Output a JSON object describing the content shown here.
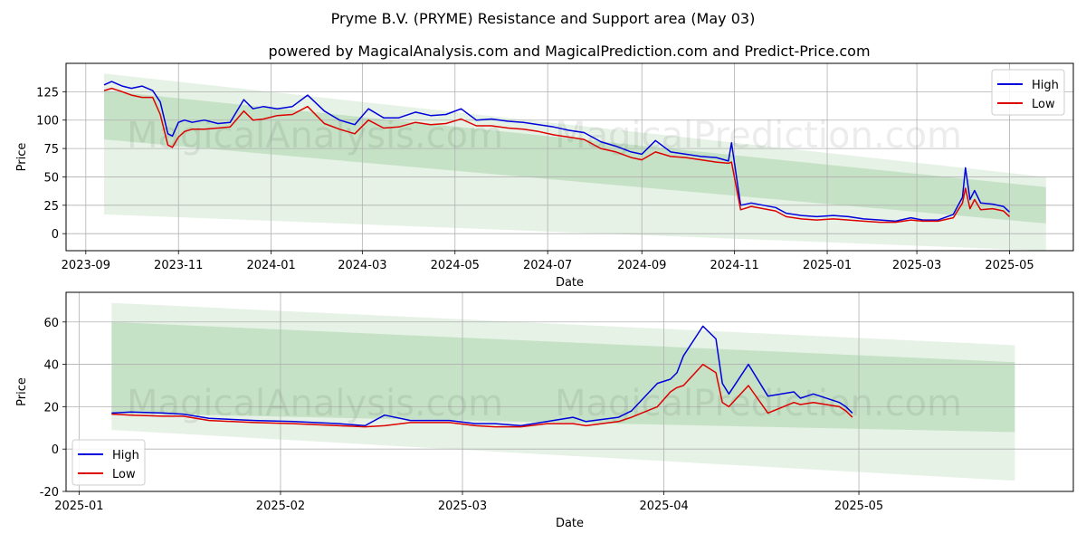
{
  "page": {
    "title": "Pryme B.V. (PRYME) Resistance and Support area (May 03)",
    "subtitle": "powered by MagicalAnalysis.com and MagicalPrediction.com and Predict-Price.com",
    "watermark_1": "MagicalAnalysis.com",
    "watermark_2": "MagicalPrediction.com"
  },
  "colors": {
    "high": "#0000dd",
    "low": "#dd0000",
    "band": "#3a9a3a",
    "grid": "#b0b0b0"
  },
  "chart_data": [
    {
      "type": "line",
      "xlabel": "Date",
      "ylabel": "Price",
      "xlim": [
        "2023-08-19",
        "2025-06-12"
      ],
      "ylim": [
        -15,
        150
      ],
      "grid": true,
      "legend_position": "top-right",
      "xticks": [
        "2023-09",
        "2023-11",
        "2024-01",
        "2024-03",
        "2024-05",
        "2024-07",
        "2024-09",
        "2024-11",
        "2025-01",
        "2025-03",
        "2025-05"
      ],
      "yticks": [
        0,
        25,
        50,
        75,
        100,
        125
      ],
      "x": [
        "2023-09-13",
        "2023-09-18",
        "2023-09-25",
        "2023-10-01",
        "2023-10-08",
        "2023-10-15",
        "2023-10-20",
        "2023-10-25",
        "2023-10-28",
        "2023-11-01",
        "2023-11-05",
        "2023-11-10",
        "2023-11-18",
        "2023-11-27",
        "2023-12-05",
        "2023-12-14",
        "2023-12-20",
        "2023-12-27",
        "2024-01-05",
        "2024-01-15",
        "2024-01-25",
        "2024-02-05",
        "2024-02-15",
        "2024-02-25",
        "2024-03-05",
        "2024-03-15",
        "2024-03-25",
        "2024-04-05",
        "2024-04-15",
        "2024-04-25",
        "2024-05-05",
        "2024-05-15",
        "2024-05-25",
        "2024-06-05",
        "2024-06-15",
        "2024-06-25",
        "2024-07-05",
        "2024-07-15",
        "2024-07-25",
        "2024-08-05",
        "2024-08-15",
        "2024-08-25",
        "2024-09-01",
        "2024-09-10",
        "2024-09-20",
        "2024-09-30",
        "2024-10-10",
        "2024-10-20",
        "2024-10-28",
        "2024-10-30",
        "2024-11-05",
        "2024-11-12",
        "2024-11-20",
        "2024-11-28",
        "2024-12-05",
        "2024-12-15",
        "2024-12-25",
        "2025-01-05",
        "2025-01-15",
        "2025-01-25",
        "2025-02-05",
        "2025-02-15",
        "2025-02-25",
        "2025-03-05",
        "2025-03-15",
        "2025-03-25",
        "2025-03-31",
        "2025-04-02",
        "2025-04-05",
        "2025-04-08",
        "2025-04-12",
        "2025-04-20",
        "2025-04-27",
        "2025-05-01"
      ],
      "series": [
        {
          "name": "High",
          "color": "#0000dd",
          "values": [
            131,
            134,
            130,
            128,
            130,
            126,
            116,
            88,
            86,
            98,
            100,
            98,
            100,
            97,
            98,
            118,
            110,
            112,
            110,
            112,
            122,
            108,
            100,
            96,
            110,
            102,
            102,
            107,
            104,
            105,
            110,
            100,
            101,
            99,
            98,
            96,
            94,
            91,
            89,
            81,
            77,
            72,
            70,
            82,
            72,
            70,
            68,
            67,
            64,
            80,
            25,
            27,
            25,
            23,
            18,
            16,
            15,
            16,
            15,
            13,
            12,
            11,
            14,
            12,
            12,
            17,
            32,
            58,
            30,
            38,
            27,
            26,
            24,
            19
          ]
        },
        {
          "name": "Low",
          "color": "#dd0000",
          "values": [
            126,
            128,
            125,
            122,
            120,
            120,
            105,
            78,
            76,
            85,
            90,
            92,
            92,
            93,
            94,
            108,
            100,
            101,
            104,
            105,
            112,
            97,
            92,
            88,
            100,
            93,
            94,
            98,
            96,
            97,
            101,
            95,
            95,
            93,
            92,
            90,
            87,
            85,
            83,
            75,
            72,
            67,
            65,
            72,
            68,
            67,
            65,
            63,
            62,
            63,
            21,
            24,
            22,
            20,
            15,
            13,
            12,
            13,
            12,
            11,
            10,
            10,
            12,
            11,
            11,
            14,
            27,
            40,
            22,
            30,
            21,
            22,
            20,
            15
          ]
        }
      ],
      "bands": [
        {
          "name": "outer",
          "start": "2023-09-13",
          "end": "2025-05-25",
          "upper": [
            141,
            50
          ],
          "lower": [
            17,
            -15
          ]
        },
        {
          "name": "inner",
          "start": "2023-09-13",
          "end": "2025-05-25",
          "upper": [
            126,
            41
          ],
          "lower": [
            83,
            9
          ]
        },
        {
          "name": "light_lower",
          "start": "2023-09-13",
          "end": "2025-05-25",
          "upper": [
            83,
            9
          ],
          "lower": [
            17,
            -15
          ]
        }
      ]
    },
    {
      "type": "line",
      "xlabel": "Date",
      "ylabel": "Price",
      "xlim": [
        "2024-12-30",
        "2025-06-03"
      ],
      "ylim": [
        -20,
        74
      ],
      "grid": true,
      "legend_position": "bottom-left",
      "xticks": [
        "2025-01",
        "2025-02",
        "2025-03",
        "2025-04",
        "2025-05"
      ],
      "yticks": [
        -20,
        0,
        20,
        40,
        60
      ],
      "x": [
        "2025-01-06",
        "2025-01-09",
        "2025-01-14",
        "2025-01-17",
        "2025-01-21",
        "2025-01-28",
        "2025-02-03",
        "2025-02-10",
        "2025-02-14",
        "2025-02-17",
        "2025-02-21",
        "2025-02-27",
        "2025-03-03",
        "2025-03-06",
        "2025-03-10",
        "2025-03-14",
        "2025-03-18",
        "2025-03-20",
        "2025-03-25",
        "2025-03-27",
        "2025-03-31",
        "2025-04-02",
        "2025-04-03",
        "2025-04-04",
        "2025-04-07",
        "2025-04-09",
        "2025-04-10",
        "2025-04-11",
        "2025-04-14",
        "2025-04-17",
        "2025-04-21",
        "2025-04-22",
        "2025-04-24",
        "2025-04-28",
        "2025-04-29",
        "2025-04-30"
      ],
      "series": [
        {
          "name": "High",
          "color": "#0000dd",
          "values": [
            17,
            17.5,
            17,
            16.5,
            14.5,
            13.5,
            13,
            12,
            11,
            16,
            13.5,
            13.5,
            12,
            12,
            11,
            13,
            15,
            13,
            15,
            18,
            31,
            33,
            36,
            44,
            58,
            52,
            31,
            26,
            40,
            25,
            27,
            24,
            26,
            22,
            20,
            17
          ]
        },
        {
          "name": "Low",
          "color": "#dd0000",
          "values": [
            16.5,
            16,
            15.5,
            15.5,
            13.5,
            12.5,
            12,
            11,
            10.5,
            11,
            12.5,
            12.5,
            11,
            10.5,
            10.5,
            12,
            12,
            11,
            13,
            15,
            20,
            27,
            29,
            30,
            40,
            36,
            22,
            20,
            30,
            17,
            22,
            21,
            22,
            20,
            18,
            15
          ]
        }
      ],
      "bands": [
        {
          "name": "outer",
          "start": "2025-01-06",
          "end": "2025-05-25",
          "upper": [
            69,
            49
          ],
          "lower": [
            9,
            -15
          ]
        },
        {
          "name": "inner",
          "start": "2025-01-06",
          "end": "2025-05-25",
          "upper": [
            60,
            41
          ],
          "lower": [
            17,
            8
          ]
        },
        {
          "name": "light_lower",
          "start": "2025-01-06",
          "end": "2025-05-25",
          "upper": [
            17,
            8
          ],
          "lower": [
            9,
            -15
          ]
        }
      ]
    }
  ]
}
